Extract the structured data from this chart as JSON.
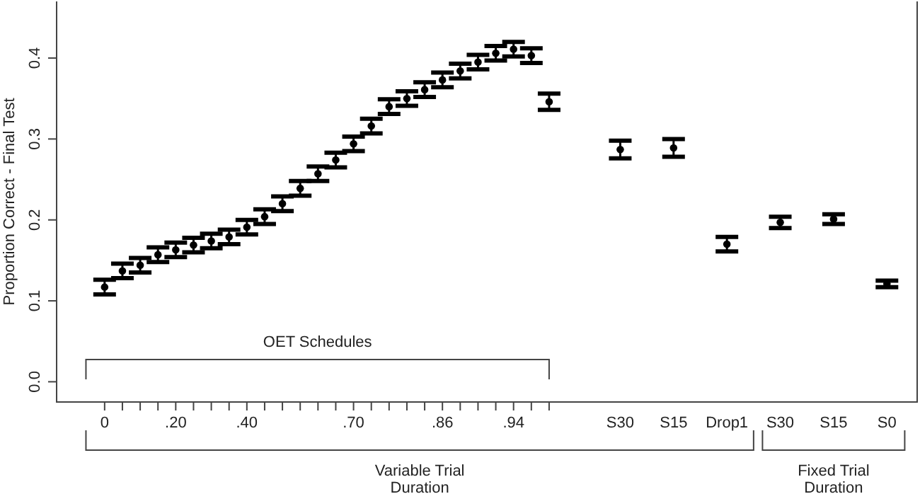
{
  "chart_data": {
    "type": "scatter",
    "ylabel": "Proportion Correct - Final Test",
    "marker": "circle",
    "ylim": [
      -0.025,
      0.47
    ],
    "yticks": [
      {
        "value": 0,
        "label": "0.0"
      },
      0.1,
      0.2,
      0.3,
      0.4
    ],
    "categories": [
      "0",
      null,
      null,
      null,
      ".20",
      null,
      null,
      null,
      ".40",
      null,
      null,
      null,
      null,
      null,
      ".70",
      null,
      null,
      null,
      null,
      ".86",
      null,
      null,
      null,
      ".94",
      null,
      null,
      null,
      null,
      null,
      "S30",
      null,
      null,
      "S15",
      null,
      null,
      "Drop1",
      null,
      null,
      "S30",
      null,
      null,
      "S15",
      null,
      null,
      "S0"
    ],
    "values": [
      0.117,
      0.137,
      0.144,
      0.157,
      0.163,
      0.169,
      0.174,
      0.179,
      0.191,
      0.204,
      0.22,
      0.239,
      0.257,
      0.274,
      0.294,
      0.316,
      0.34,
      0.35,
      0.361,
      0.373,
      0.384,
      0.395,
      0.406,
      0.411,
      0.403,
      0.346,
      null,
      null,
      null,
      0.287,
      null,
      null,
      0.289,
      null,
      null,
      0.17,
      null,
      null,
      0.197,
      null,
      null,
      0.201,
      null,
      null,
      0.121
    ],
    "errors": [
      0.009,
      0.009,
      0.009,
      0.009,
      0.009,
      0.009,
      0.009,
      0.009,
      0.009,
      0.009,
      0.009,
      0.009,
      0.009,
      0.009,
      0.009,
      0.009,
      0.009,
      0.009,
      0.009,
      0.009,
      0.009,
      0.009,
      0.009,
      0.009,
      0.009,
      0.01,
      null,
      null,
      null,
      0.011,
      null,
      null,
      0.011,
      null,
      null,
      0.009,
      null,
      null,
      0.007,
      null,
      null,
      0.006,
      null,
      null,
      0.004
    ],
    "annotations": [
      "OET Schedules",
      "Variable Trial Duration",
      "Fixed Trial Duration"
    ]
  }
}
